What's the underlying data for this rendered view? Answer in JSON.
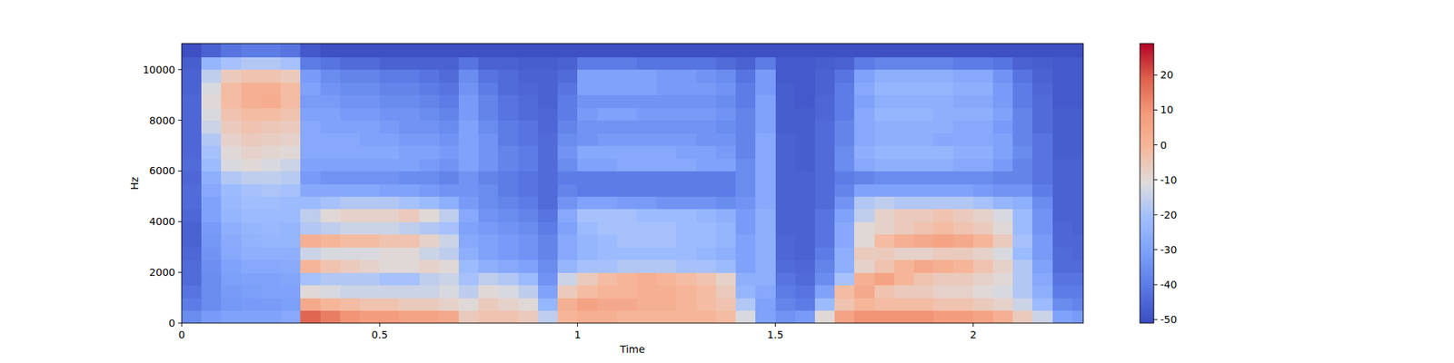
{
  "chart_data": {
    "type": "heatmap",
    "x_label": "Time",
    "y_label": "Hz",
    "xlim": [
      0,
      2.278
    ],
    "ylim": [
      0,
      11025
    ],
    "xticks": [
      0,
      0.5,
      1,
      1.5,
      2
    ],
    "yticks": [
      0,
      2000,
      4000,
      6000,
      8000,
      10000
    ],
    "zlim": [
      -51,
      29
    ],
    "zticks": [
      -50,
      -40,
      -30,
      -20,
      -10,
      0,
      10,
      20
    ],
    "xbins": [
      0,
      0.05,
      0.1,
      0.15,
      0.2,
      0.25,
      0.3,
      0.35,
      0.4,
      0.45,
      0.5,
      0.55,
      0.6,
      0.65,
      0.7,
      0.75,
      0.8,
      0.85,
      0.9,
      0.95,
      1,
      1.05,
      1.1,
      1.15,
      1.2,
      1.25,
      1.3,
      1.35,
      1.4,
      1.45,
      1.5,
      1.55,
      1.6,
      1.65,
      1.7,
      1.75,
      1.8,
      1.85,
      1.9,
      1.95,
      2,
      2.05,
      2.1,
      2.15,
      2.2,
      2.25,
      2.3
    ],
    "ybins": [
      0,
      500,
      1000,
      1500,
      2000,
      2500,
      3000,
      3500,
      4000,
      4500,
      5000,
      5500,
      6000,
      6500,
      7000,
      7500,
      8000,
      8500,
      9000,
      9500,
      10000,
      10500,
      11025
    ],
    "cells": [
      [
        -36,
        -40,
        -42,
        -44,
        -44,
        -45,
        -46,
        -46,
        -45,
        -44,
        -44,
        -45,
        -44,
        -45,
        -45,
        -45,
        -45,
        -45,
        -46,
        -46,
        -47,
        -50
      ],
      [
        -32,
        -36,
        -36,
        -36,
        -35,
        -34,
        -33,
        -32,
        -30,
        -30,
        -28,
        -26,
        -22,
        -20,
        -18,
        -14,
        -12,
        -10,
        -12,
        -16,
        -24,
        -46
      ],
      [
        -30,
        -33,
        -32,
        -31,
        -30,
        -28,
        -27,
        -26,
        -24,
        -23,
        -22,
        -18,
        -12,
        -10,
        -8,
        -6,
        -4,
        -2,
        -2,
        -6,
        -20,
        -42
      ],
      [
        -30,
        -32,
        -31,
        -30,
        -28,
        -26,
        -25,
        -24,
        -22,
        -21,
        -20,
        -16,
        -10,
        -8,
        -6,
        -4,
        -2,
        2,
        2,
        -4,
        -18,
        -40
      ],
      [
        -30,
        -32,
        -30,
        -30,
        -28,
        -26,
        -24,
        -23,
        -22,
        -21,
        -19,
        -16,
        -12,
        -9,
        -7,
        -5,
        -2,
        3,
        2,
        -4,
        -18,
        -40
      ],
      [
        -28,
        -31,
        -30,
        -29,
        -27,
        -26,
        -24,
        -24,
        -22,
        -22,
        -20,
        -17,
        -14,
        -10,
        -8,
        -6,
        -4,
        -2,
        -2,
        -6,
        -20,
        -42
      ],
      [
        18,
        4,
        -10,
        -20,
        0,
        -14,
        2,
        -18,
        -16,
        -22,
        -28,
        -32,
        -30,
        -28,
        -28,
        -28,
        -30,
        -32,
        -30,
        -32,
        -40,
        -48
      ],
      [
        14,
        0,
        -12,
        -18,
        -4,
        -12,
        0,
        -16,
        -10,
        -20,
        -28,
        -34,
        -30,
        -28,
        -28,
        -30,
        -30,
        -32,
        -34,
        -36,
        -42,
        -50
      ],
      [
        10,
        -2,
        -14,
        -18,
        -6,
        -12,
        -2,
        -14,
        -8,
        -18,
        -28,
        -34,
        -30,
        -28,
        -28,
        -30,
        -32,
        -34,
        -36,
        -38,
        -44,
        -50
      ],
      [
        8,
        -4,
        -14,
        -18,
        -8,
        -12,
        -2,
        -14,
        -8,
        -18,
        -28,
        -34,
        -30,
        -28,
        -30,
        -30,
        -32,
        -34,
        -36,
        -38,
        -44,
        -50
      ],
      [
        8,
        -4,
        -14,
        -20,
        -10,
        -10,
        -4,
        -14,
        -8,
        -18,
        -30,
        -34,
        -30,
        -28,
        -30,
        -32,
        -34,
        -36,
        -38,
        -40,
        -46,
        -50
      ],
      [
        6,
        -6,
        -14,
        -20,
        -10,
        -10,
        -4,
        -16,
        -6,
        -20,
        -30,
        -36,
        -30,
        -30,
        -32,
        -34,
        -34,
        -36,
        -38,
        -40,
        -46,
        -50
      ],
      [
        6,
        -6,
        -14,
        -16,
        -8,
        -14,
        -8,
        -18,
        -10,
        -22,
        -32,
        -36,
        -32,
        -30,
        -32,
        -34,
        -36,
        -38,
        -40,
        -42,
        -46,
        -50
      ],
      [
        4,
        -8,
        -12,
        -14,
        -10,
        -16,
        -14,
        -20,
        -16,
        -26,
        -34,
        -38,
        -34,
        -32,
        -34,
        -36,
        -38,
        -40,
        -42,
        -44,
        -46,
        -50
      ],
      [
        -6,
        -10,
        -16,
        -20,
        -22,
        -26,
        -28,
        -30,
        -28,
        -32,
        -34,
        -34,
        -30,
        -30,
        -30,
        -30,
        -32,
        -32,
        -34,
        -36,
        -42,
        -50
      ],
      [
        -4,
        -6,
        -10,
        -16,
        -26,
        -30,
        -30,
        -32,
        -34,
        -36,
        -36,
        -38,
        -34,
        -34,
        -34,
        -36,
        -38,
        -38,
        -40,
        -42,
        -46,
        -50
      ],
      [
        -4,
        -8,
        -12,
        -18,
        -28,
        -32,
        -32,
        -34,
        -36,
        -38,
        -40,
        -40,
        -38,
        -38,
        -40,
        -40,
        -42,
        -42,
        -44,
        -44,
        -46,
        -50
      ],
      [
        -6,
        -10,
        -16,
        -22,
        -30,
        -34,
        -34,
        -36,
        -38,
        -40,
        -42,
        -42,
        -40,
        -40,
        -42,
        -42,
        -44,
        -44,
        -45,
        -46,
        -47,
        -50
      ],
      [
        -16,
        -24,
        -30,
        -34,
        -36,
        -38,
        -38,
        -40,
        -42,
        -44,
        -44,
        -44,
        -44,
        -44,
        -44,
        -45,
        -45,
        -46,
        -46,
        -46,
        -47,
        -50
      ],
      [
        0,
        2,
        -6,
        -14,
        -24,
        -28,
        -28,
        -30,
        -28,
        -34,
        -38,
        -40,
        -36,
        -34,
        -36,
        -38,
        -40,
        -40,
        -42,
        -44,
        -46,
        -50
      ],
      [
        2,
        6,
        -2,
        -6,
        -20,
        -24,
        -24,
        -22,
        -20,
        -30,
        -40,
        -40,
        -30,
        -28,
        -34,
        -34,
        -32,
        -34,
        -30,
        -30,
        -40,
        -50
      ],
      [
        2,
        4,
        0,
        -2,
        -20,
        -22,
        -22,
        -20,
        -20,
        -30,
        -40,
        -40,
        -30,
        -28,
        -32,
        -34,
        -30,
        -34,
        -30,
        -30,
        -40,
        -50
      ],
      [
        0,
        4,
        0,
        0,
        -18,
        -22,
        -20,
        -20,
        -20,
        -32,
        -40,
        -40,
        -28,
        -28,
        -32,
        -34,
        -30,
        -34,
        -30,
        -30,
        -40,
        -50
      ],
      [
        0,
        2,
        2,
        2,
        -18,
        -22,
        -20,
        -20,
        -22,
        -32,
        -40,
        -40,
        -28,
        -28,
        -32,
        -34,
        -32,
        -34,
        -30,
        -30,
        -42,
        -50
      ],
      [
        0,
        2,
        2,
        0,
        -18,
        -22,
        -20,
        -20,
        -22,
        -34,
        -40,
        -40,
        -28,
        -28,
        -32,
        -34,
        -32,
        -34,
        -32,
        -32,
        -42,
        -50
      ],
      [
        0,
        0,
        0,
        -2,
        -20,
        -22,
        -22,
        -22,
        -22,
        -34,
        -40,
        -40,
        -28,
        -30,
        -32,
        -34,
        -32,
        -34,
        -32,
        -32,
        -42,
        -50
      ],
      [
        0,
        -2,
        -2,
        -4,
        -20,
        -24,
        -22,
        -22,
        -24,
        -34,
        -40,
        -40,
        -30,
        -30,
        -34,
        -34,
        -32,
        -34,
        -32,
        -34,
        -42,
        -50
      ],
      [
        -2,
        -4,
        -6,
        -8,
        -22,
        -26,
        -24,
        -24,
        -26,
        -36,
        -40,
        -40,
        -30,
        -32,
        -34,
        -36,
        -34,
        -36,
        -34,
        -36,
        -44,
        -50
      ],
      [
        -12,
        -18,
        -24,
        -26,
        -30,
        -30,
        -30,
        -32,
        -32,
        -34,
        -36,
        -36,
        -36,
        -38,
        -38,
        -38,
        -38,
        -40,
        -40,
        -42,
        -46,
        -50
      ],
      [
        -30,
        -30,
        -28,
        -26,
        -26,
        -26,
        -26,
        -26,
        -26,
        -28,
        -28,
        -28,
        -28,
        -28,
        -28,
        -30,
        -30,
        -30,
        -32,
        -32,
        -40,
        -50
      ],
      [
        -34,
        -38,
        -40,
        -42,
        -44,
        -45,
        -45,
        -46,
        -46,
        -46,
        -46,
        -46,
        -46,
        -46,
        -46,
        -47,
        -47,
        -47,
        -47,
        -48,
        -48,
        -50
      ],
      [
        -32,
        -40,
        -42,
        -44,
        -45,
        -46,
        -46,
        -46,
        -46,
        -46,
        -46,
        -46,
        -47,
        -47,
        -47,
        -47,
        -47,
        -48,
        -48,
        -48,
        -48,
        -50
      ],
      [
        -10,
        -22,
        -30,
        -36,
        -38,
        -40,
        -42,
        -42,
        -42,
        -44,
        -44,
        -44,
        -44,
        -44,
        -44,
        -44,
        -45,
        -45,
        -46,
        -46,
        -47,
        -50
      ],
      [
        6,
        -4,
        -2,
        -20,
        -26,
        -26,
        -28,
        -28,
        -30,
        -34,
        -38,
        -40,
        -36,
        -36,
        -38,
        -38,
        -40,
        -40,
        -40,
        -42,
        -46,
        -50
      ],
      [
        10,
        0,
        4,
        2,
        -8,
        -6,
        -10,
        -10,
        -16,
        -18,
        -30,
        -38,
        -28,
        -26,
        -28,
        -28,
        -28,
        -30,
        -28,
        -30,
        -40,
        -50
      ],
      [
        10,
        -2,
        -4,
        6,
        -4,
        -6,
        -2,
        -8,
        -8,
        -16,
        -30,
        -36,
        -26,
        -24,
        -26,
        -26,
        -24,
        -26,
        -24,
        -26,
        -38,
        -50
      ],
      [
        10,
        -2,
        -6,
        0,
        0,
        -8,
        2,
        -6,
        -6,
        -18,
        -30,
        -36,
        -26,
        -24,
        -26,
        -26,
        -24,
        -26,
        -24,
        -26,
        -38,
        -50
      ],
      [
        10,
        -2,
        -6,
        -4,
        4,
        -8,
        4,
        -4,
        -6,
        -18,
        -30,
        -36,
        -26,
        -24,
        -26,
        -26,
        -24,
        -26,
        -24,
        -26,
        -38,
        -50
      ],
      [
        8,
        -4,
        -8,
        -6,
        2,
        -6,
        6,
        -2,
        -4,
        -18,
        -30,
        -36,
        -26,
        -24,
        -28,
        -26,
        -26,
        -26,
        -24,
        -26,
        -38,
        -50
      ],
      [
        8,
        -4,
        -8,
        -6,
        0,
        -6,
        4,
        -4,
        -6,
        -18,
        -30,
        -36,
        -28,
        -26,
        -28,
        -28,
        -26,
        -28,
        -26,
        -28,
        -40,
        -50
      ],
      [
        6,
        -6,
        -10,
        -8,
        -4,
        -8,
        0,
        -6,
        -8,
        -20,
        -32,
        -36,
        -28,
        -26,
        -28,
        -28,
        -26,
        -28,
        -26,
        -28,
        -40,
        -50
      ],
      [
        2,
        -8,
        -12,
        -10,
        -8,
        -12,
        -6,
        -10,
        -12,
        -24,
        -34,
        -38,
        -32,
        -30,
        -30,
        -32,
        -30,
        -32,
        -32,
        -34,
        -42,
        -50
      ],
      [
        -6,
        -14,
        -18,
        -18,
        -18,
        -22,
        -20,
        -22,
        -22,
        -26,
        -34,
        -38,
        -38,
        -36,
        -38,
        -38,
        -38,
        -40,
        -40,
        -42,
        -46,
        -50
      ],
      [
        -14,
        -22,
        -26,
        -28,
        -30,
        -32,
        -32,
        -34,
        -34,
        -36,
        -40,
        -42,
        -42,
        -42,
        -42,
        -44,
        -44,
        -44,
        -45,
        -46,
        -47,
        -50
      ],
      [
        -30,
        -36,
        -40,
        -42,
        -44,
        -44,
        -45,
        -45,
        -46,
        -46,
        -46,
        -46,
        -46,
        -47,
        -47,
        -47,
        -47,
        -48,
        -48,
        -48,
        -48,
        -50
      ],
      [
        -32,
        -38,
        -40,
        -42,
        -44,
        -45,
        -45,
        -46,
        -46,
        -46,
        -46,
        -46,
        -46,
        -47,
        -47,
        -47,
        -47,
        -48,
        -48,
        -48,
        -48,
        -50
      ]
    ]
  }
}
